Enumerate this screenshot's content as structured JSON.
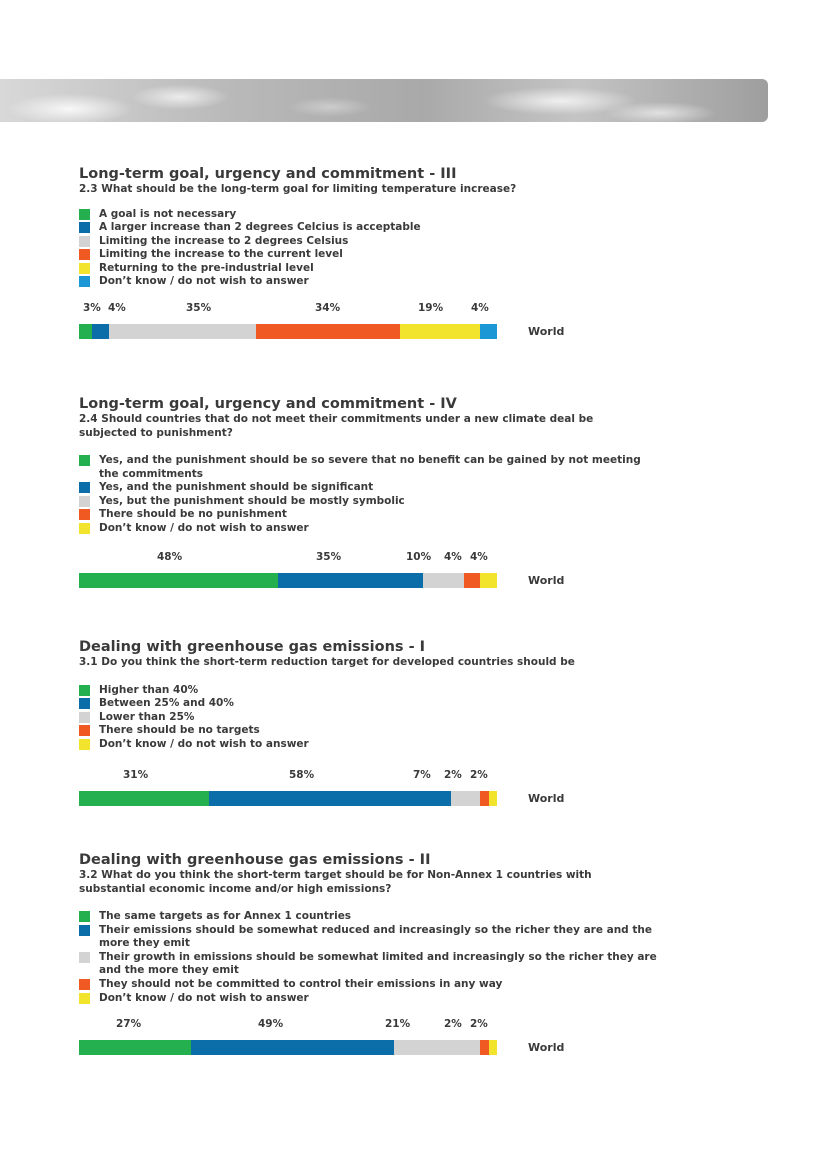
{
  "colors": {
    "green": "#24b04e",
    "blue": "#0b6ea8",
    "grey": "#d3d3d3",
    "orange": "#f05a22",
    "yellow": "#f2e32c",
    "cyan": "#1b97d5"
  },
  "sections": [
    {
      "title": "Long-term goal, urgency and commitment - III",
      "question": "2.3 What should be the long-term goal for limiting temperature increase?",
      "legend": [
        {
          "label": "A goal is not necessary",
          "color": "green"
        },
        {
          "label": "A larger increase than 2 degrees Celcius is acceptable",
          "color": "blue"
        },
        {
          "label": "Limiting the increase to 2 degrees Celsius",
          "color": "grey"
        },
        {
          "label": "Limiting the increase to the current level",
          "color": "orange"
        },
        {
          "label": "Returning to the pre-industrial level",
          "color": "yellow"
        },
        {
          "label": "Don’t know / do not wish to answer",
          "color": "cyan"
        }
      ],
      "percent_labels": [
        "3%",
        "4%",
        "35%",
        "34%",
        "19%",
        "4%"
      ],
      "bar_label": "World"
    },
    {
      "title": "Long-term goal, urgency and commitment - IV",
      "question": "2.4 Should countries that do not meet their commitments under a new climate deal be subjected to punishment?",
      "legend": [
        {
          "label": "Yes, and the punishment should be so severe that no benefit can be gained by not meeting the commitments",
          "color": "green"
        },
        {
          "label": "Yes, and the punishment should be significant",
          "color": "blue"
        },
        {
          "label": "Yes, but the punishment should be mostly symbolic",
          "color": "grey"
        },
        {
          "label": "There should be no punishment",
          "color": "orange"
        },
        {
          "label": "Don’t know / do not wish to answer",
          "color": "yellow"
        }
      ],
      "percent_labels": [
        "48%",
        "35%",
        "10%",
        "4%",
        "4%"
      ],
      "bar_label": "World"
    },
    {
      "title": "Dealing with greenhouse gas emissions - I",
      "question": "3.1 Do you think the short-term reduction target for developed countries should be",
      "legend": [
        {
          "label": "Higher than 40%",
          "color": "green"
        },
        {
          "label": "Between 25% and 40%",
          "color": "blue"
        },
        {
          "label": "Lower than 25%",
          "color": "grey"
        },
        {
          "label": "There should be no targets",
          "color": "orange"
        },
        {
          "label": "Don’t know / do not wish to answer",
          "color": "yellow"
        }
      ],
      "percent_labels": [
        "31%",
        "58%",
        "7%",
        "2%",
        "2%"
      ],
      "bar_label": "World"
    },
    {
      "title": "Dealing with greenhouse gas emissions - II",
      "question": "3.2 What do you think the short-term target should be for Non-Annex 1 countries with substantial economic income and/or high emissions?",
      "legend": [
        {
          "label": "The same targets as for Annex 1 countries",
          "color": "green"
        },
        {
          "label": "Their emissions should be somewhat reduced and increasingly so the richer they are and the more they emit",
          "color": "blue"
        },
        {
          "label": "Their growth in emissions should be somewhat limited and increasingly so the richer they are and the more they emit",
          "color": "grey"
        },
        {
          "label": "They should not be committed to control their emissions in any way",
          "color": "orange"
        },
        {
          "label": "Don’t know / do not wish to answer",
          "color": "yellow"
        }
      ],
      "percent_labels": [
        "27%",
        "49%",
        "21%",
        "2%",
        "2%"
      ],
      "bar_label": "World"
    }
  ],
  "chart_data": [
    {
      "type": "bar",
      "stacked": true,
      "orientation": "horizontal",
      "categories": [
        "World"
      ],
      "series": [
        {
          "name": "A goal is not necessary",
          "values": [
            3
          ],
          "color": "green"
        },
        {
          "name": "A larger increase than 2 degrees Celcius is acceptable",
          "values": [
            4
          ],
          "color": "blue"
        },
        {
          "name": "Limiting the increase to 2 degrees Celsius",
          "values": [
            35
          ],
          "color": "grey"
        },
        {
          "name": "Limiting the increase to the current level",
          "values": [
            34
          ],
          "color": "orange"
        },
        {
          "name": "Returning to the pre-industrial level",
          "values": [
            19
          ],
          "color": "yellow"
        },
        {
          "name": "Don’t know / do not wish to answer",
          "values": [
            4
          ],
          "color": "cyan"
        }
      ]
    },
    {
      "type": "bar",
      "stacked": true,
      "orientation": "horizontal",
      "categories": [
        "World"
      ],
      "series": [
        {
          "name": "Yes, and the punishment should be so severe that no benefit can be gained by not meeting the commitments",
          "values": [
            48
          ],
          "color": "green"
        },
        {
          "name": "Yes, and the punishment should be significant",
          "values": [
            35
          ],
          "color": "blue"
        },
        {
          "name": "Yes, but the punishment should be mostly symbolic",
          "values": [
            10
          ],
          "color": "grey"
        },
        {
          "name": "There should be no punishment",
          "values": [
            4
          ],
          "color": "orange"
        },
        {
          "name": "Don’t know / do not wish to answer",
          "values": [
            4
          ],
          "color": "yellow"
        }
      ]
    },
    {
      "type": "bar",
      "stacked": true,
      "orientation": "horizontal",
      "categories": [
        "World"
      ],
      "series": [
        {
          "name": "Higher than 40%",
          "values": [
            31
          ],
          "color": "green"
        },
        {
          "name": "Between 25% and 40%",
          "values": [
            58
          ],
          "color": "blue"
        },
        {
          "name": "Lower than 25%",
          "values": [
            7
          ],
          "color": "grey"
        },
        {
          "name": "There should be no targets",
          "values": [
            2
          ],
          "color": "orange"
        },
        {
          "name": "Don’t know / do not wish to answer",
          "values": [
            2
          ],
          "color": "yellow"
        }
      ]
    },
    {
      "type": "bar",
      "stacked": true,
      "orientation": "horizontal",
      "categories": [
        "World"
      ],
      "series": [
        {
          "name": "The same targets as for Annex 1 countries",
          "values": [
            27
          ],
          "color": "green"
        },
        {
          "name": "Their emissions should be somewhat reduced and increasingly so the richer they are and the more they emit",
          "values": [
            49
          ],
          "color": "blue"
        },
        {
          "name": "Their growth in emissions should be somewhat limited and increasingly so the richer they are and the more they emit",
          "values": [
            21
          ],
          "color": "grey"
        },
        {
          "name": "They should not be committed to control their emissions in any way",
          "values": [
            2
          ],
          "color": "orange"
        },
        {
          "name": "Don’t know / do not wish to answer",
          "values": [
            2
          ],
          "color": "yellow"
        }
      ]
    }
  ]
}
